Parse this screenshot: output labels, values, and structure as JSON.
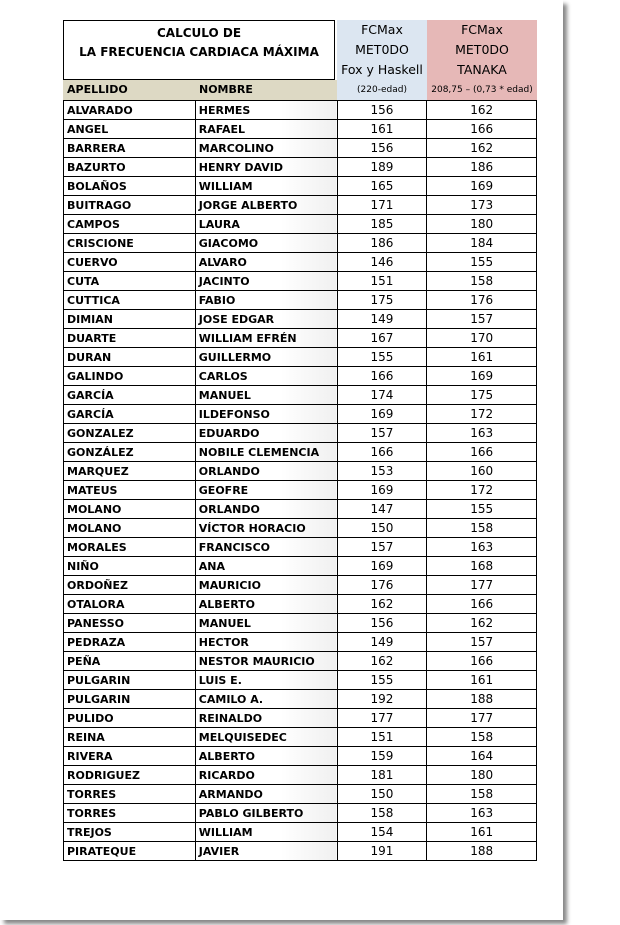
{
  "title": {
    "line1": "CALCULO DE",
    "line2": "LA FRECUENCIA CARDIACA MÁXIMA"
  },
  "fox": {
    "line1": "FCMax",
    "line2": "MET0DO",
    "line3": "Fox y Haskell",
    "formula": "(220-edad)"
  },
  "tanaka": {
    "line1": "FCMax",
    "line2": "MET0DO",
    "line3": "TANAKA",
    "formula": "208,75 – (0,73 * edad)"
  },
  "headers": {
    "apellido": "APELLIDO",
    "nombre": "NOMBRE"
  },
  "colors": {
    "fox": "#dce6f1",
    "tanaka": "#e6b8b7",
    "label_row": "#ddd9c4"
  },
  "rows": [
    [
      "ALVARADO",
      "HERMES",
      "156",
      "162"
    ],
    [
      "ANGEL",
      "RAFAEL",
      "161",
      "166"
    ],
    [
      "BARRERA",
      "MARCOLINO",
      "156",
      "162"
    ],
    [
      "BAZURTO",
      "HENRY DAVID",
      "189",
      "186"
    ],
    [
      "BOLAÑOS",
      "WILLIAM",
      "165",
      "169"
    ],
    [
      "BUITRAGO",
      "JORGE ALBERTO",
      "171",
      "173"
    ],
    [
      "CAMPOS",
      "LAURA",
      "185",
      "180"
    ],
    [
      "CRISCIONE",
      "GIACOMO",
      "186",
      "184"
    ],
    [
      "CUERVO",
      "ALVARO",
      "146",
      "155"
    ],
    [
      "CUTA",
      "JACINTO",
      "151",
      "158"
    ],
    [
      "CUTTICA",
      "FABIO",
      "175",
      "176"
    ],
    [
      "DIMIAN",
      "JOSE EDGAR",
      "149",
      "157"
    ],
    [
      "DUARTE",
      "WILLIAM EFRÉN",
      "167",
      "170"
    ],
    [
      "DURAN",
      "GUILLERMO",
      "155",
      "161"
    ],
    [
      "GALINDO",
      "CARLOS",
      "166",
      "169"
    ],
    [
      "GARCÍA",
      "MANUEL",
      "174",
      "175"
    ],
    [
      "GARCÍA",
      "ILDEFONSO",
      "169",
      "172"
    ],
    [
      "GONZALEZ",
      "EDUARDO",
      "157",
      "163"
    ],
    [
      "GONZÁLEZ",
      "NOBILE CLEMENCIA",
      "166",
      "166"
    ],
    [
      "MARQUEZ",
      "ORLANDO",
      "153",
      "160"
    ],
    [
      "MATEUS",
      "GEOFRE",
      "169",
      "172"
    ],
    [
      "MOLANO",
      "ORLANDO",
      "147",
      "155"
    ],
    [
      "MOLANO",
      "VÍCTOR HORACIO",
      "150",
      "158"
    ],
    [
      "MORALES",
      "FRANCISCO",
      "157",
      "163"
    ],
    [
      "NIÑO",
      "ANA",
      "169",
      "168"
    ],
    [
      "ORDOÑEZ",
      "MAURICIO",
      "176",
      "177"
    ],
    [
      "OTALORA",
      "ALBERTO",
      "162",
      "166"
    ],
    [
      "PANESSO",
      "MANUEL",
      "156",
      "162"
    ],
    [
      "PEDRAZA",
      "HECTOR",
      "149",
      "157"
    ],
    [
      "PEÑA",
      "NESTOR MAURICIO",
      "162",
      "166"
    ],
    [
      "PULGARIN",
      "LUIS E.",
      "155",
      "161"
    ],
    [
      "PULGARIN",
      "CAMILO A.",
      "192",
      "188"
    ],
    [
      "PULIDO",
      "REINALDO",
      "177",
      "177"
    ],
    [
      "REINA",
      "MELQUISEDEC",
      "151",
      "158"
    ],
    [
      "RIVERA",
      "ALBERTO",
      "159",
      "164"
    ],
    [
      "RODRIGUEZ",
      "RICARDO",
      "181",
      "180"
    ],
    [
      "TORRES",
      "ARMANDO",
      "150",
      "158"
    ],
    [
      "TORRES",
      "PABLO GILBERTO",
      "158",
      "163"
    ],
    [
      "TREJOS",
      "WILLIAM",
      "154",
      "161"
    ],
    [
      "PIRATEQUE",
      "JAVIER",
      "191",
      "188"
    ]
  ]
}
